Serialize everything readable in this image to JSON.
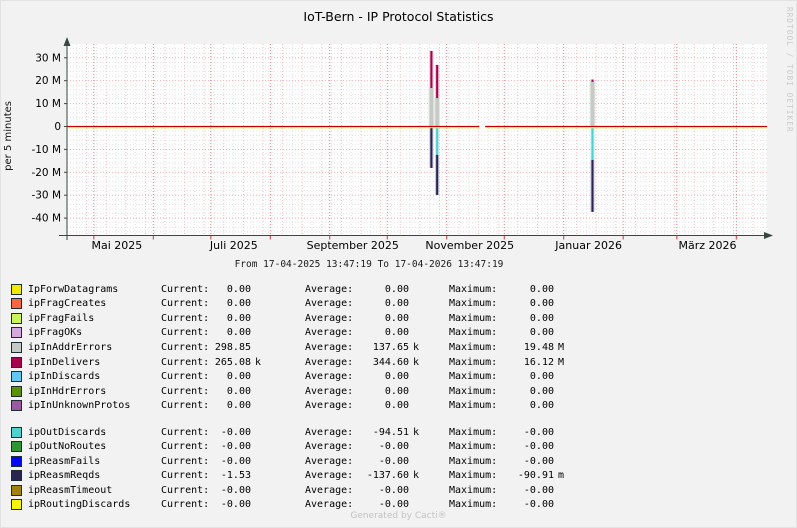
{
  "header": {
    "title": "IoT-Bern - IP Protocol Statistics"
  },
  "watermarks": {
    "rrdtool": "RRDTOOL / TOBI OETIKER",
    "generator": "Generated by Cacti®"
  },
  "chart_data": {
    "type": "line",
    "title": "IoT-Bern - IP Protocol Statistics",
    "subtitle": "From 17-04-2025 13:47:19 To 17-04-2026 13:47:19",
    "ylabel": "per 5 minutes",
    "xlabel": "",
    "y_unit": "M (millions, per 5 minutes)",
    "ylim": [
      -47.5,
      36
    ],
    "x_range": [
      "2025-04-17",
      "2026-04-17"
    ],
    "grid": true,
    "legend_position": "bottom",
    "y_ticks": [
      {
        "v": 30,
        "label": "30 M"
      },
      {
        "v": 20,
        "label": "20 M"
      },
      {
        "v": 10,
        "label": "10 M"
      },
      {
        "v": 0,
        "label": "0"
      },
      {
        "v": -10,
        "label": "-10 M"
      },
      {
        "v": -20,
        "label": "-20 M"
      },
      {
        "v": -30,
        "label": "-30 M"
      },
      {
        "v": -40,
        "label": "-40 M"
      }
    ],
    "x_ticks": [
      {
        "date": "2025-05-13",
        "label": "Mai 2025"
      },
      {
        "date": "2025-07-13",
        "label": "Juli 2025"
      },
      {
        "date": "2025-09-13",
        "label": "September 2025"
      },
      {
        "date": "2025-11-13",
        "label": "November 2025"
      },
      {
        "date": "2026-01-14",
        "label": "Januar 2026"
      },
      {
        "date": "2026-03-17",
        "label": "März 2026"
      }
    ],
    "month_lines": [
      "2025-05-01",
      "2025-06-01",
      "2025-07-01",
      "2025-08-01",
      "2025-09-01",
      "2025-10-01",
      "2025-11-01",
      "2025-12-01",
      "2026-01-01",
      "2026-02-01",
      "2026-03-01",
      "2026-04-01"
    ],
    "zero_line": {
      "value": 0,
      "line_colors": [
        "#c80000",
        "#f5f500"
      ],
      "data_gap": [
        "2025-11-18",
        "2025-11-21"
      ]
    },
    "series_colors": {
      "IpForwDatagrams": "#f2e900",
      "ipFragCreates": "#f9663f",
      "ipFragFails": "#c9f55b",
      "ipFragOKs": "#d5a8e0",
      "ipInAddrErrors": "#c5cbc4",
      "ipInDelivers": "#a6024d",
      "ipInDiscards": "#64c6f2",
      "ipInHdrErrors": "#5b9200",
      "ipInUnknownProtos": "#9c59a3",
      "ipOutDiscards": "#4fd2ce",
      "ipOutNoRoutes": "#2e9434",
      "ipReasmFails": "#0407f5",
      "ipReasmReqds": "#2a2550",
      "ipReasmTimeout": "#a1810d",
      "ipRoutingDiscards": "#f5f50c"
    },
    "series_halos": {
      "ipInDelivers": "#edbfd3",
      "ipInAddrErrors": "#e0e4e0",
      "ipOutDiscards": "#c9edf1",
      "ipReasmReqds": "#c5c3da"
    },
    "spikes": [
      {
        "date": "2025-10-24",
        "up": [
          [
            "ipInAddrErrors",
            16.8
          ],
          [
            "ipInDelivers",
            16.2
          ]
        ],
        "down": [
          [
            "ipReasmReqds",
            18.1
          ]
        ]
      },
      {
        "date": "2025-10-27",
        "up": [
          [
            "ipInAddrErrors",
            12.4
          ],
          [
            "ipInDelivers",
            14.5
          ]
        ],
        "down": [
          [
            "ipOutDiscards",
            12.4
          ],
          [
            "ipReasmReqds",
            17.5
          ]
        ]
      },
      {
        "date": "2026-01-16",
        "up": [
          [
            "ipInAddrErrors",
            19.5
          ],
          [
            "ipInDelivers",
            1.0
          ]
        ],
        "down": [
          [
            "ipOutDiscards",
            14.6
          ],
          [
            "ipReasmReqds",
            22.7
          ]
        ]
      }
    ]
  },
  "legend": {
    "columns": [
      "Current:",
      "Average:",
      "Maximum:"
    ],
    "groups": [
      [
        {
          "label": "IpForwDatagrams",
          "color": "#f2e900",
          "stats": [
            [
              "0.00",
              ""
            ],
            [
              "0.00",
              ""
            ],
            [
              "0.00",
              ""
            ]
          ]
        },
        {
          "label": "ipFragCreates",
          "color": "#f9663f",
          "stats": [
            [
              "0.00",
              ""
            ],
            [
              "0.00",
              ""
            ],
            [
              "0.00",
              ""
            ]
          ]
        },
        {
          "label": "ipFragFails",
          "color": "#c9f55b",
          "stats": [
            [
              "0.00",
              ""
            ],
            [
              "0.00",
              ""
            ],
            [
              "0.00",
              ""
            ]
          ]
        },
        {
          "label": "ipFragOKs",
          "color": "#d5a8e0",
          "stats": [
            [
              "0.00",
              ""
            ],
            [
              "0.00",
              ""
            ],
            [
              "0.00",
              ""
            ]
          ]
        },
        {
          "label": "ipInAddrErrors",
          "color": "#c5cbc4",
          "stats": [
            [
              "298.85",
              ""
            ],
            [
              "137.65",
              "k"
            ],
            [
              "19.48",
              "M"
            ]
          ]
        },
        {
          "label": "ipInDelivers",
          "color": "#a6024d",
          "stats": [
            [
              "265.08",
              "k"
            ],
            [
              "344.60",
              "k"
            ],
            [
              "16.12",
              "M"
            ]
          ]
        },
        {
          "label": "ipInDiscards",
          "color": "#64c6f2",
          "stats": [
            [
              "0.00",
              ""
            ],
            [
              "0.00",
              ""
            ],
            [
              "0.00",
              ""
            ]
          ]
        },
        {
          "label": "ipInHdrErrors",
          "color": "#5b9200",
          "stats": [
            [
              "0.00",
              ""
            ],
            [
              "0.00",
              ""
            ],
            [
              "0.00",
              ""
            ]
          ]
        },
        {
          "label": "ipInUnknownProtos",
          "color": "#9c59a3",
          "stats": [
            [
              "0.00",
              ""
            ],
            [
              "0.00",
              ""
            ],
            [
              "0.00",
              ""
            ]
          ]
        }
      ],
      [
        {
          "label": "ipOutDiscards",
          "color": "#4fd2ce",
          "stats": [
            [
              "-0.00",
              ""
            ],
            [
              "-94.51",
              "k"
            ],
            [
              "-0.00",
              ""
            ]
          ]
        },
        {
          "label": "ipOutNoRoutes",
          "color": "#2e9434",
          "stats": [
            [
              "-0.00",
              ""
            ],
            [
              "-0.00",
              ""
            ],
            [
              "-0.00",
              ""
            ]
          ]
        },
        {
          "label": "ipReasmFails",
          "color": "#0407f5",
          "stats": [
            [
              "-0.00",
              ""
            ],
            [
              "-0.00",
              ""
            ],
            [
              "-0.00",
              ""
            ]
          ]
        },
        {
          "label": "ipReasmReqds",
          "color": "#2a2550",
          "stats": [
            [
              "-1.53",
              ""
            ],
            [
              "-137.60",
              "k"
            ],
            [
              "-90.91",
              "m"
            ]
          ]
        },
        {
          "label": "ipReasmTimeout",
          "color": "#a1810d",
          "stats": [
            [
              "-0.00",
              ""
            ],
            [
              "-0.00",
              ""
            ],
            [
              "-0.00",
              ""
            ]
          ]
        },
        {
          "label": "ipRoutingDiscards",
          "color": "#f5f50c",
          "stats": [
            [
              "-0.00",
              ""
            ],
            [
              "-0.00",
              ""
            ],
            [
              "-0.00",
              ""
            ]
          ]
        }
      ]
    ]
  }
}
